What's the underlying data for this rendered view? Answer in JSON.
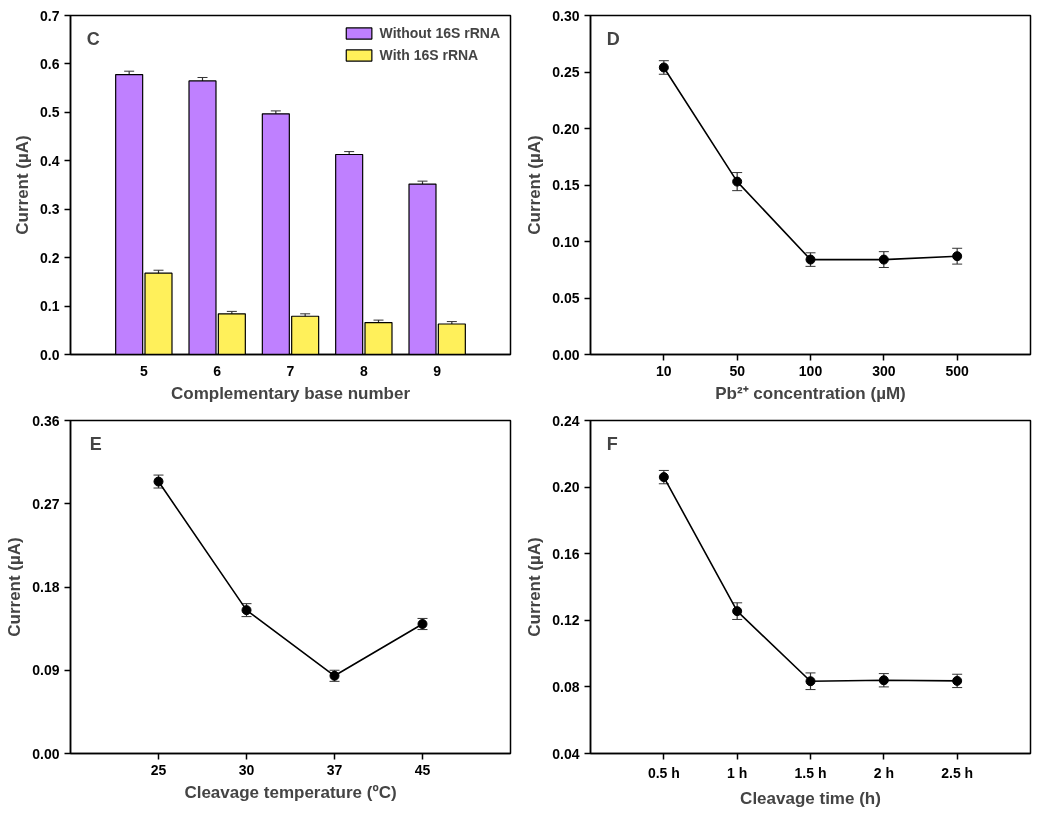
{
  "chart_data": [
    {
      "type": "bar",
      "xlabel": "Complementary base number",
      "ylabel": "Current (µA)",
      "annotations": [
        "C"
      ],
      "categories": [
        "5",
        "6",
        "7",
        "8",
        "9"
      ],
      "series": [
        {
          "name": "Without 16S rRNA",
          "color": "#bf80ff",
          "values": [
            0.578,
            0.565,
            0.497,
            0.413,
            0.352
          ],
          "errors": [
            0.007,
            0.007,
            0.006,
            0.006,
            0.006
          ]
        },
        {
          "name": "With 16S rRNA",
          "color": "#fff05a",
          "values": [
            0.168,
            0.084,
            0.079,
            0.066,
            0.063
          ],
          "errors": [
            0.006,
            0.005,
            0.005,
            0.005,
            0.005
          ]
        }
      ],
      "ylim": [
        0,
        0.7
      ],
      "yticks": [
        {
          "value": 0,
          "label": "0.0"
        },
        0.1,
        0.2,
        0.3,
        0.4,
        0.5,
        0.6,
        0.7
      ],
      "legend": "top right",
      "grid": false
    },
    {
      "type": "line",
      "xlabel": "Pb²⁺ concentration (µM)",
      "ylabel": "Current (µA)",
      "annotations": [
        "D"
      ],
      "categories": [
        "10",
        "50",
        "100",
        "300",
        "500"
      ],
      "series": [
        {
          "color": "#000000",
          "values": [
            0.254,
            0.153,
            0.084,
            0.084,
            0.087
          ],
          "errors": [
            0.006,
            0.008,
            0.006,
            0.007,
            0.007
          ]
        }
      ],
      "ylim": [
        0,
        0.3
      ],
      "yticks": [
        {
          "value": 0,
          "label": "0.00"
        },
        0.05,
        {
          "value": 0.1,
          "label": "0.10"
        },
        0.15,
        {
          "value": 0.2,
          "label": "0.20"
        },
        0.25,
        {
          "value": 0.3,
          "label": "0.30"
        }
      ],
      "marker": "circle",
      "line_style": "solid",
      "grid": false
    },
    {
      "type": "line",
      "xlabel": "Cleavage temperature (ºC)",
      "ylabel": "Current (µA)",
      "annotations": [
        "E"
      ],
      "categories": [
        "25",
        "30",
        "37",
        "45"
      ],
      "series": [
        {
          "color": "#000000",
          "values": [
            0.294,
            0.155,
            0.084,
            0.14
          ],
          "errors": [
            0.007,
            0.007,
            0.006,
            0.006
          ]
        }
      ],
      "ylim": [
        0,
        0.36
      ],
      "yticks": [
        {
          "value": 0,
          "label": "0.00"
        },
        0.09,
        0.18,
        0.27,
        0.36
      ],
      "marker": "circle",
      "line_style": "solid",
      "grid": false
    },
    {
      "type": "line",
      "xlabel": "Cleavage time (h)",
      "ylabel": "Current (µA)",
      "annotations": [
        "F"
      ],
      "categories": [
        "0.5 h",
        "1 h",
        "1.5 h",
        "2 h",
        "2.5 h"
      ],
      "series": [
        {
          "color": "#000000",
          "values": [
            0.206,
            0.1255,
            0.0834,
            0.084,
            0.0836
          ],
          "errors": [
            0.004,
            0.005,
            0.005,
            0.004,
            0.004
          ]
        }
      ],
      "ylim": [
        0.04,
        0.24
      ],
      "yticks": [
        0.04,
        0.08,
        0.12,
        0.16,
        {
          "value": 0.2,
          "label": "0.20"
        },
        0.24
      ],
      "marker": "circle",
      "line_style": "solid",
      "grid": false
    }
  ]
}
